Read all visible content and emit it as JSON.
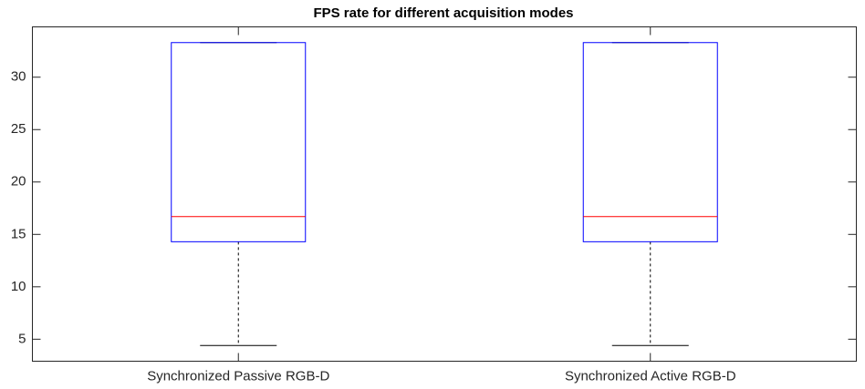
{
  "chart_data": {
    "type": "box",
    "title": "FPS rate for different acquisition modes",
    "categories": [
      "Synchronized Passive RGB-D",
      "Synchronized Active RGB-D"
    ],
    "boxes": [
      {
        "min": 4.4,
        "q1": 14.3,
        "median": 16.7,
        "q3": 33.3,
        "max": 33.3
      },
      {
        "min": 4.4,
        "q1": 14.3,
        "median": 16.7,
        "q3": 33.3,
        "max": 33.3
      }
    ],
    "box_color": "#0000ff",
    "median_color": "#ff0000",
    "whisker_color": "#000000",
    "ylim": [
      2.9,
      34.8
    ],
    "yticks": [
      5,
      10,
      15,
      20,
      25,
      30
    ],
    "grid": false
  }
}
